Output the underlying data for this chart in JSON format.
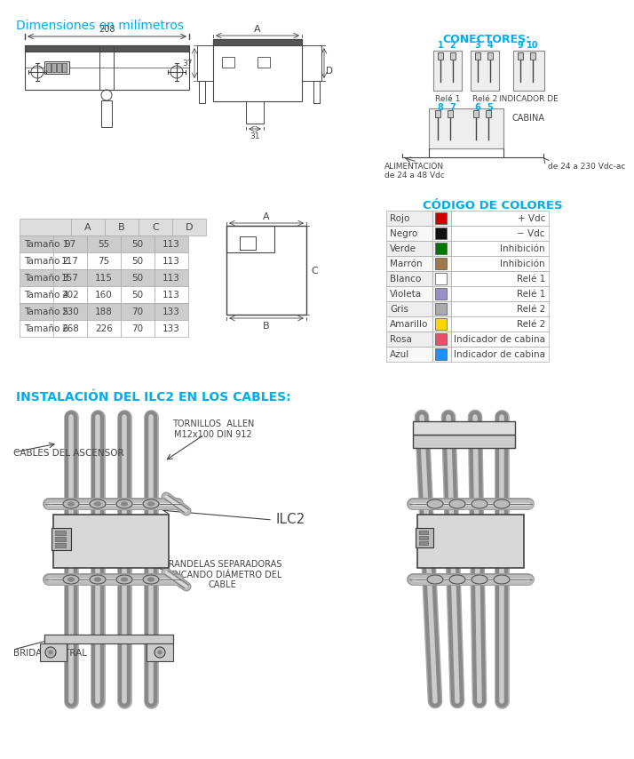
{
  "title": "Dimensiones en milímetros",
  "title_color": "#00AEEF",
  "section2_title": "INSTALACIÓN DEL ILC2 EN LOS CABLES:",
  "section2_color": "#00AEEF",
  "conectores_title": "CONECTORES:",
  "conectores_color": "#00AEEF",
  "codigo_title": "CÓDIGO DE COLORES",
  "codigo_color": "#00AEEF",
  "table_headers": [
    "A",
    "B",
    "C",
    "D"
  ],
  "table_rows": [
    [
      "Tamaño 1",
      "97",
      "55",
      "50",
      "113"
    ],
    [
      "Tamaño 2",
      "117",
      "75",
      "50",
      "113"
    ],
    [
      "Tamaño 3",
      "157",
      "115",
      "50",
      "113"
    ],
    [
      "Tamaño 4",
      "202",
      "160",
      "50",
      "113"
    ],
    [
      "Tamaño 5",
      "230",
      "188",
      "70",
      "133"
    ],
    [
      "Tamaño 6",
      "268",
      "226",
      "70",
      "133"
    ]
  ],
  "table_shaded_rows": [
    0,
    2,
    4
  ],
  "color_rows": [
    [
      "Rojo",
      "#CC0000",
      "+ Vdc"
    ],
    [
      "Negro",
      "#111111",
      "− Vdc"
    ],
    [
      "Verde",
      "#007700",
      "Inhibición"
    ],
    [
      "Marrón",
      "#A07850",
      "Inhibición"
    ],
    [
      "Blanco",
      "#FFFFFF",
      "Relé 1"
    ],
    [
      "Violeta",
      "#9B8FC7",
      "Relé 1"
    ],
    [
      "Gris",
      "#AAAAAA",
      "Relé 2"
    ],
    [
      "Amarillo",
      "#FFD700",
      "Relé 2"
    ],
    [
      "Rosa",
      "#E8506A",
      "Indicador de cabina"
    ],
    [
      "Azul",
      "#1E90FF",
      "Indicador de cabina"
    ]
  ],
  "table_shaded_odd": true,
  "dim_208": "208",
  "alimentacion_text": "ALIMENTACIÓN\nde 24 a 48 Vdc",
  "cabina_text": "CABINA",
  "indicador_text": "INDICADOR DE",
  "de_text": "de 24 a 230 Vdc-ac",
  "rele1_text": "Relé 1",
  "rele2_text": "Relé 2",
  "bg_color": "#FFFFFF",
  "line_color": "#444444",
  "shade_color": "#CCCCCC",
  "tornillos_text": "TORNILLOS  ALLEN\nM12x100 DIN 912",
  "cables_text": "CABLES DEL ASCENSOR",
  "ilc2_text": "ILC2",
  "arandelas_text": "ARANDELAS SEPARADORAS\nINDICANDO DIÁMETRO DEL\nCABLE",
  "brida_text": "BRIDA CENTRAL"
}
